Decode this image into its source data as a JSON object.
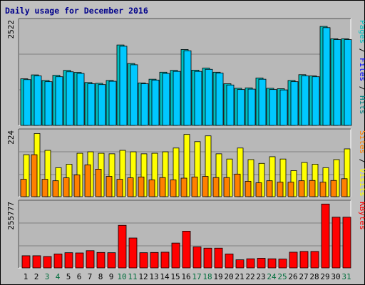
{
  "title": "Daily usage for December 2016",
  "colors": {
    "background": "#c0c0c0",
    "panel": "#b8b8b8",
    "grid": "#808080",
    "pages": "#00bfbf",
    "files": "#00c8ff",
    "visits": "#ff8000",
    "sites": "#ffff00",
    "kbytes": "#ff0000",
    "weekday": "#000000",
    "weekend": "#006e3c"
  },
  "chart_data": [
    {
      "type": "bar",
      "panel": "hits",
      "y_scale_label": "2522",
      "ylim": [
        0,
        2522
      ],
      "grid": true,
      "right_label": [
        {
          "text": "Pages",
          "color": "#00bfbf"
        },
        {
          "text": " / ",
          "color": "#000000"
        },
        {
          "text": "Files",
          "color": "#0000ff"
        },
        {
          "text": " / ",
          "color": "#000000"
        },
        {
          "text": "Hits",
          "color": "#008080"
        }
      ],
      "categories": [
        "1",
        "2",
        "3",
        "4",
        "5",
        "6",
        "7",
        "8",
        "9",
        "10",
        "11",
        "12",
        "13",
        "14",
        "15",
        "16",
        "17",
        "18",
        "19",
        "20",
        "21",
        "22",
        "23",
        "24",
        "25",
        "26",
        "27",
        "28",
        "29",
        "30",
        "31"
      ],
      "series": [
        {
          "name": "Hits",
          "values": [
            1130,
            1225,
            1090,
            1215,
            1335,
            1285,
            1040,
            1020,
            1090,
            1950,
            1500,
            1030,
            1120,
            1290,
            1335,
            1840,
            1340,
            1390,
            1290,
            1010,
            900,
            910,
            1150,
            900,
            890,
            1090,
            1230,
            1200,
            2400,
            2100,
            2100
          ]
        },
        {
          "name": "Files",
          "values": [
            1110,
            1200,
            1060,
            1180,
            1300,
            1260,
            1010,
            990,
            1070,
            1920,
            1470,
            1010,
            1100,
            1260,
            1310,
            1810,
            1310,
            1360,
            1270,
            980,
            870,
            880,
            1120,
            870,
            860,
            1060,
            1200,
            1180,
            2370,
            2080,
            2080
          ]
        }
      ]
    },
    {
      "type": "bar",
      "panel": "visits",
      "y_scale_label": "224",
      "ylim": [
        0,
        224
      ],
      "grid": true,
      "right_label": [
        {
          "text": "Sites",
          "color": "#ff8000"
        },
        {
          "text": " / ",
          "color": "#000000"
        },
        {
          "text": "Visits",
          "color": "#ffff00"
        }
      ],
      "categories": [
        "1",
        "2",
        "3",
        "4",
        "5",
        "6",
        "7",
        "8",
        "9",
        "10",
        "11",
        "12",
        "13",
        "14",
        "15",
        "16",
        "17",
        "18",
        "19",
        "20",
        "21",
        "22",
        "23",
        "24",
        "25",
        "26",
        "27",
        "28",
        "29",
        "30",
        "31"
      ],
      "series": [
        {
          "name": "Visits",
          "values": [
            145,
            218,
            160,
            100,
            112,
            150,
            155,
            150,
            148,
            160,
            155,
            148,
            150,
            155,
            168,
            215,
            190,
            210,
            148,
            130,
            168,
            128,
            115,
            138,
            130,
            90,
            118,
            112,
            100,
            128,
            165
          ]
        },
        {
          "name": "Sites",
          "values": [
            60,
            145,
            60,
            55,
            65,
            75,
            110,
            95,
            70,
            60,
            65,
            68,
            58,
            66,
            58,
            64,
            68,
            70,
            66,
            66,
            78,
            53,
            48,
            55,
            50,
            50,
            55,
            56,
            50,
            56,
            62
          ]
        }
      ]
    },
    {
      "type": "bar",
      "panel": "kbytes",
      "y_scale_label": "255777",
      "ylim": [
        0,
        255777
      ],
      "grid": true,
      "right_label": [
        {
          "text": "KBytes",
          "color": "#ff0000"
        }
      ],
      "categories": [
        "1",
        "2",
        "3",
        "4",
        "5",
        "6",
        "7",
        "8",
        "9",
        "10",
        "11",
        "12",
        "13",
        "14",
        "15",
        "16",
        "17",
        "18",
        "19",
        "20",
        "21",
        "22",
        "23",
        "24",
        "25",
        "26",
        "27",
        "28",
        "29",
        "30",
        "31"
      ],
      "series": [
        {
          "name": "KBytes",
          "values": [
            48000,
            48000,
            45000,
            55000,
            60000,
            59000,
            68000,
            61000,
            60000,
            168000,
            118000,
            60000,
            61000,
            62000,
            98000,
            145000,
            83000,
            78000,
            78000,
            55000,
            32000,
            36000,
            38000,
            36000,
            35000,
            62000,
            65000,
            65000,
            252000,
            200000,
            200000
          ]
        }
      ]
    }
  ],
  "day_labels": [
    {
      "text": "1",
      "weekend": false
    },
    {
      "text": "2",
      "weekend": false
    },
    {
      "text": "3",
      "weekend": true
    },
    {
      "text": "4",
      "weekend": true
    },
    {
      "text": "5",
      "weekend": false
    },
    {
      "text": "6",
      "weekend": false
    },
    {
      "text": "7",
      "weekend": false
    },
    {
      "text": "8",
      "weekend": false
    },
    {
      "text": "9",
      "weekend": false
    },
    {
      "text": "10",
      "weekend": true
    },
    {
      "text": "11",
      "weekend": true
    },
    {
      "text": "12",
      "weekend": false
    },
    {
      "text": "13",
      "weekend": false
    },
    {
      "text": "14",
      "weekend": false
    },
    {
      "text": "15",
      "weekend": false
    },
    {
      "text": "16",
      "weekend": false
    },
    {
      "text": "17",
      "weekend": true
    },
    {
      "text": "18",
      "weekend": true
    },
    {
      "text": "19",
      "weekend": false
    },
    {
      "text": "20",
      "weekend": false
    },
    {
      "text": "21",
      "weekend": false
    },
    {
      "text": "22",
      "weekend": false
    },
    {
      "text": "23",
      "weekend": false
    },
    {
      "text": "24",
      "weekend": true
    },
    {
      "text": "25",
      "weekend": true
    },
    {
      "text": "26",
      "weekend": false
    },
    {
      "text": "27",
      "weekend": false
    },
    {
      "text": "28",
      "weekend": false
    },
    {
      "text": "29",
      "weekend": false
    },
    {
      "text": "30",
      "weekend": false
    },
    {
      "text": "31",
      "weekend": true
    }
  ]
}
